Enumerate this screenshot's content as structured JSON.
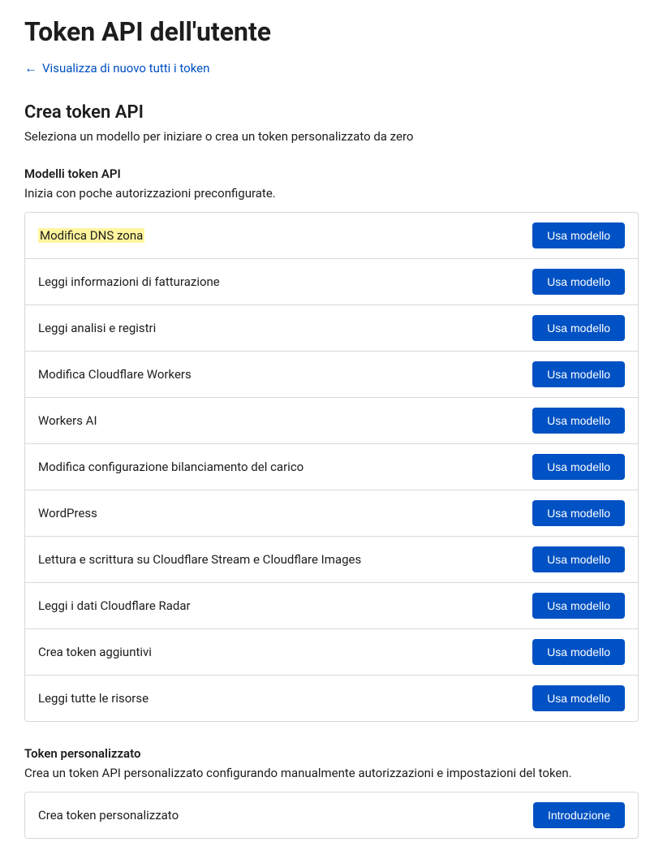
{
  "page": {
    "title": "Token API dell'utente",
    "backLink": "Visualizza di nuovo tutti i token"
  },
  "createSection": {
    "title": "Crea token API",
    "description": "Seleziona un modello per iniziare o crea un token personalizzato da zero"
  },
  "templatesSection": {
    "title": "Modelli token API",
    "description": "Inizia con poche autorizzazioni preconfigurate.",
    "buttonLabel": "Usa modello",
    "items": [
      {
        "label": "Modifica DNS zona",
        "highlighted": true
      },
      {
        "label": "Leggi informazioni di fatturazione",
        "highlighted": false
      },
      {
        "label": "Leggi analisi e registri",
        "highlighted": false
      },
      {
        "label": "Modifica Cloudflare Workers",
        "highlighted": false
      },
      {
        "label": "Workers AI",
        "highlighted": false
      },
      {
        "label": "Modifica configurazione bilanciamento del carico",
        "highlighted": false
      },
      {
        "label": "WordPress",
        "highlighted": false
      },
      {
        "label": "Lettura e scrittura su Cloudflare Stream e Cloudflare Images",
        "highlighted": false
      },
      {
        "label": "Leggi i dati Cloudflare Radar",
        "highlighted": false
      },
      {
        "label": "Crea token aggiuntivi",
        "highlighted": false
      },
      {
        "label": "Leggi tutte le risorse",
        "highlighted": false
      }
    ]
  },
  "customSection": {
    "title": "Token personalizzato",
    "description": "Crea un token API personalizzato configurando manualmente autorizzazioni e impostazioni del token.",
    "rowLabel": "Crea token personalizzato",
    "buttonLabel": "Introduzione"
  },
  "colors": {
    "primary": "#0051c3",
    "border": "#d9d9d9",
    "highlight": "#fff59d",
    "text": "#1d1d1d",
    "background": "#ffffff"
  }
}
